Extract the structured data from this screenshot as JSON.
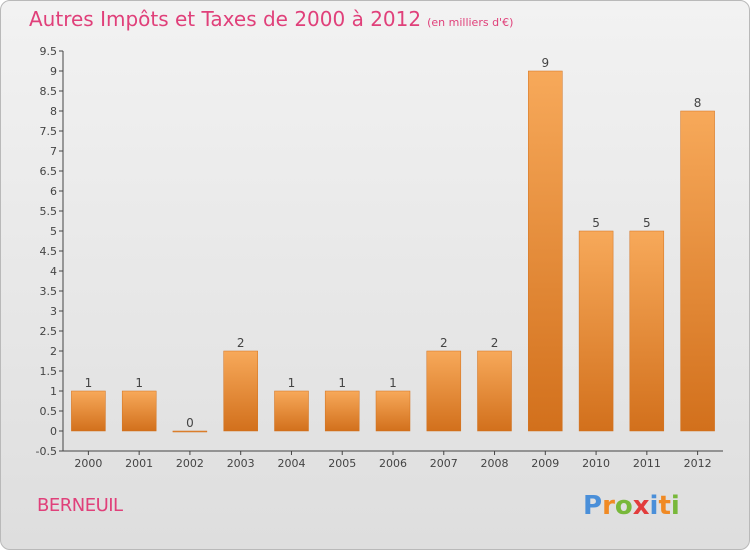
{
  "header": {
    "title": "Autres Impôts et Taxes de 2000 à 2012",
    "unit": "(en milliers d'€)"
  },
  "footer": {
    "commune": "BERNEUIL",
    "brand_parts": [
      "P",
      "r",
      "o",
      "x",
      "i",
      "t",
      "i"
    ]
  },
  "colors": {
    "title": "#e0407a",
    "bar_top": "#f7a95a",
    "bar_bottom": "#d2701c",
    "brand": [
      "#4a8fd9",
      "#f08a24",
      "#78b83a",
      "#e23c3c",
      "#4a8fd9",
      "#f08a24",
      "#78b83a"
    ]
  },
  "chart_data": {
    "type": "bar",
    "title": "Autres Impôts et Taxes de 2000 à 2012",
    "subtitle": "(en milliers d'€)",
    "categories": [
      "2000",
      "2001",
      "2002",
      "2003",
      "2004",
      "2005",
      "2006",
      "2007",
      "2008",
      "2009",
      "2010",
      "2011",
      "2012"
    ],
    "values": [
      1,
      1,
      0,
      2,
      1,
      1,
      1,
      2,
      2,
      9,
      5,
      5,
      8
    ],
    "data_labels": [
      "1",
      "1",
      "0",
      "2",
      "1",
      "1",
      "1",
      "2",
      "2",
      "9",
      "5",
      "5",
      "8"
    ],
    "ylim": [
      -0.5,
      9.5
    ],
    "yticks": [
      "-0.5",
      "0",
      "0.5",
      "1",
      "1.5",
      "2",
      "2.5",
      "3",
      "3.5",
      "4",
      "4.5",
      "5",
      "5.5",
      "6",
      "6.5",
      "7",
      "7.5",
      "8",
      "8.5",
      "9",
      "9.5"
    ],
    "grid": false,
    "xlabel": "",
    "ylabel": ""
  }
}
